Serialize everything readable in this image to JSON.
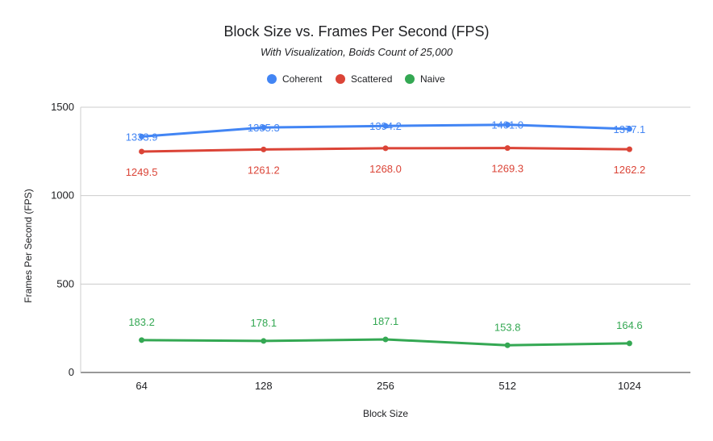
{
  "chart_data": {
    "type": "line",
    "title": "Block Size vs. Frames Per Second (FPS)",
    "subtitle": "With Visualization, Boids Count of 25,000",
    "xlabel": "Block Size",
    "ylabel": "Frames Per Second (FPS)",
    "categories": [
      "64",
      "128",
      "256",
      "512",
      "1024"
    ],
    "ylim": [
      0,
      1500
    ],
    "yticks": [
      0,
      500,
      1000,
      1500
    ],
    "grid": true,
    "legend_position": "top",
    "series": [
      {
        "name": "Coherent",
        "color": "#4285f4",
        "values": [
          1333.9,
          1385.3,
          1394.2,
          1401.0,
          1377.1
        ],
        "labels": [
          "1333.9",
          "1385.3",
          "1394.2",
          "1401.0",
          "1377.1"
        ]
      },
      {
        "name": "Scattered",
        "color": "#db4437",
        "values": [
          1249.5,
          1261.2,
          1268.0,
          1269.3,
          1262.2
        ],
        "labels": [
          "1249.5",
          "1261.2",
          "1268.0",
          "1269.3",
          "1262.2"
        ]
      },
      {
        "name": "Naive",
        "color": "#34a853",
        "values": [
          183.2,
          178.1,
          187.1,
          153.8,
          164.6
        ],
        "labels": [
          "183.2",
          "178.1",
          "187.1",
          "153.8",
          "164.6"
        ]
      }
    ]
  }
}
